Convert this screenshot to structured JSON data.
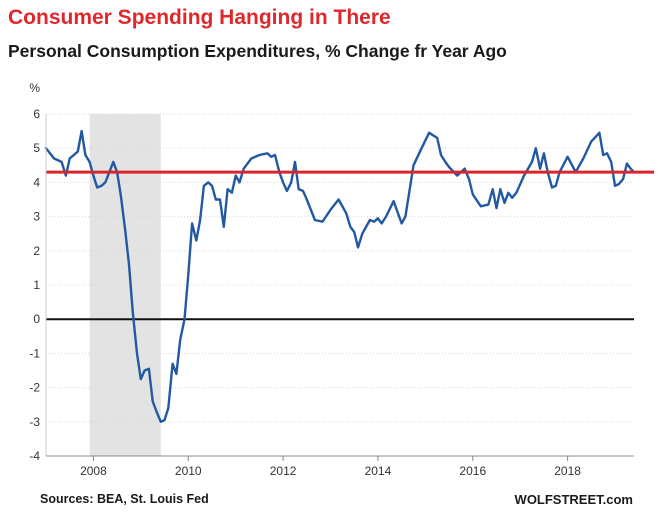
{
  "header": {
    "title": "Consumer Spending Hanging in There",
    "subtitle": "Personal Consumption Expenditures, % Change fr Year Ago"
  },
  "footer": {
    "source": "Sources: BEA, St. Louis Fed",
    "brand": "WOLFSTREET.com"
  },
  "chart_data": {
    "type": "line",
    "title": "Consumer Spending Hanging in There",
    "subtitle": "Personal Consumption Expenditures, % Change fr Year Ago",
    "ylabel": "%",
    "xlim": [
      2007.0,
      2019.4
    ],
    "ylim": [
      -4,
      6
    ],
    "y_ticks": [
      -4,
      -3,
      -2,
      -1,
      0,
      1,
      2,
      3,
      4,
      5,
      6
    ],
    "x_ticks": [
      2008,
      2010,
      2012,
      2014,
      2016,
      2018
    ],
    "grid": true,
    "legend": "none",
    "colors": {
      "line": "#2359a3",
      "reference": "#d9262c",
      "zero": "#111111",
      "recession": "#e3e3e3"
    },
    "recession": [
      2007.92,
      2009.42
    ],
    "reference_line": 4.3,
    "zero_line": 0,
    "series": [
      {
        "x": [
          2007.0,
          2007.17,
          2007.33,
          2007.42,
          2007.5,
          2007.67,
          2007.75,
          2007.83,
          2007.92,
          2008.0,
          2008.08,
          2008.17,
          2008.25,
          2008.42,
          2008.5,
          2008.58,
          2008.67,
          2008.75,
          2008.83,
          2008.92,
          2009.0,
          2009.08,
          2009.17,
          2009.25,
          2009.33,
          2009.42,
          2009.5,
          2009.58,
          2009.67,
          2009.75,
          2009.83,
          2009.92,
          2010.0,
          2010.08,
          2010.17,
          2010.25,
          2010.33,
          2010.42,
          2010.5,
          2010.58,
          2010.67,
          2010.75,
          2010.83,
          2010.92,
          2011.0,
          2011.08,
          2011.17,
          2011.33,
          2011.5,
          2011.67,
          2011.75,
          2011.83,
          2011.92,
          2012.0,
          2012.08,
          2012.17,
          2012.25,
          2012.33,
          2012.42,
          2012.5,
          2012.67,
          2012.83,
          2013.0,
          2013.17,
          2013.33,
          2013.42,
          2013.5,
          2013.58,
          2013.67,
          2013.83,
          2013.92,
          2014.0,
          2014.08,
          2014.17,
          2014.33,
          2014.5,
          2014.58,
          2014.75,
          2014.92,
          2015.08,
          2015.25,
          2015.33,
          2015.42,
          2015.5,
          2015.67,
          2015.83,
          2015.92,
          2016.0,
          2016.17,
          2016.33,
          2016.42,
          2016.5,
          2016.58,
          2016.67,
          2016.75,
          2016.83,
          2016.92,
          2017.08,
          2017.25,
          2017.33,
          2017.42,
          2017.5,
          2017.58,
          2017.67,
          2017.75,
          2017.83,
          2018.0,
          2018.17,
          2018.33,
          2018.5,
          2018.67,
          2018.75,
          2018.83,
          2018.92,
          2019.0,
          2019.08,
          2019.17,
          2019.25,
          2019.33,
          2019.4
        ],
        "values": [
          5.0,
          4.7,
          4.6,
          4.2,
          4.7,
          4.9,
          5.5,
          4.8,
          4.6,
          4.2,
          3.85,
          3.9,
          4.0,
          4.6,
          4.3,
          3.6,
          2.6,
          1.6,
          0.2,
          -1.0,
          -1.75,
          -1.5,
          -1.45,
          -2.4,
          -2.7,
          -3.0,
          -2.95,
          -2.6,
          -1.3,
          -1.6,
          -0.6,
          0.0,
          1.3,
          2.8,
          2.3,
          2.9,
          3.9,
          4.0,
          3.9,
          3.5,
          3.5,
          2.7,
          3.8,
          3.7,
          4.2,
          4.0,
          4.4,
          4.7,
          4.8,
          4.85,
          4.75,
          4.8,
          4.3,
          4.0,
          3.75,
          4.0,
          4.6,
          3.8,
          3.75,
          3.5,
          2.9,
          2.85,
          3.2,
          3.5,
          3.1,
          2.7,
          2.55,
          2.1,
          2.5,
          2.9,
          2.85,
          2.95,
          2.8,
          3.0,
          3.45,
          2.8,
          3.0,
          4.5,
          5.0,
          5.45,
          5.3,
          4.8,
          4.6,
          4.45,
          4.2,
          4.4,
          4.1,
          3.65,
          3.3,
          3.35,
          3.8,
          3.25,
          3.8,
          3.4,
          3.7,
          3.55,
          3.7,
          4.2,
          4.6,
          5.0,
          4.4,
          4.85,
          4.3,
          3.85,
          3.9,
          4.3,
          4.75,
          4.3,
          4.7,
          5.2,
          5.45,
          4.8,
          4.85,
          4.6,
          3.9,
          3.95,
          4.1,
          4.55,
          4.4,
          4.3
        ]
      }
    ]
  }
}
